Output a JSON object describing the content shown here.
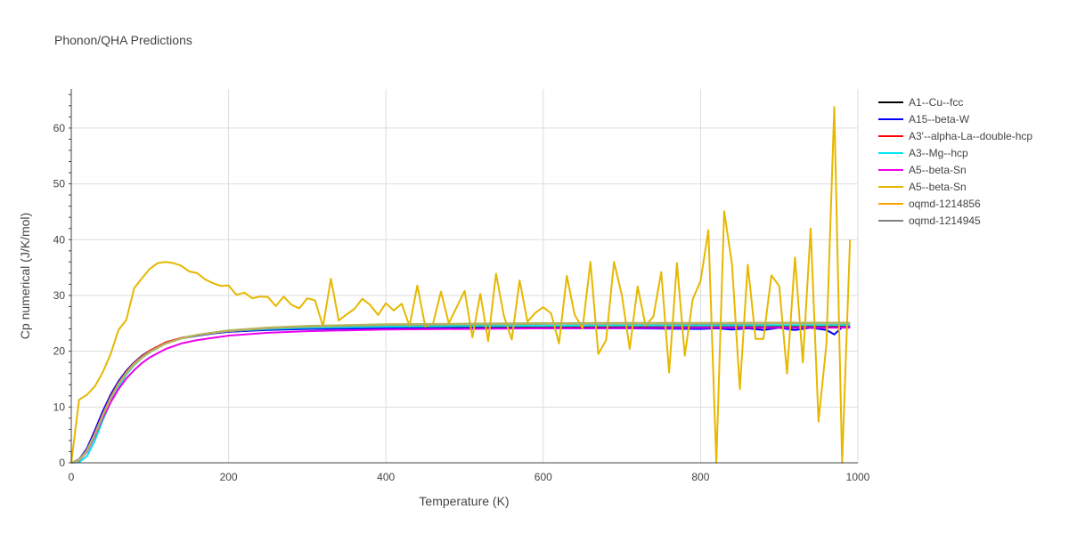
{
  "chart_data": {
    "type": "line",
    "title": "Phonon/QHA Predictions",
    "xlabel": "Temperature (K)",
    "ylabel": "Cp numerical (J/K/mol)",
    "xlim": [
      0,
      1000
    ],
    "ylim": [
      0,
      67
    ],
    "xticks": [
      0,
      200,
      400,
      600,
      800,
      1000
    ],
    "yticks": [
      0,
      10,
      20,
      30,
      40,
      50,
      60
    ],
    "grid": true,
    "legend_position": "right",
    "series": [
      {
        "name": "A1--Cu--fcc",
        "color": "#000000",
        "x": [
          0,
          10,
          20,
          30,
          40,
          50,
          60,
          70,
          80,
          90,
          100,
          120,
          140,
          160,
          180,
          200,
          250,
          300,
          400,
          500,
          600,
          700,
          800,
          900,
          990
        ],
        "y": [
          0,
          0.5,
          2.2,
          5.2,
          8.6,
          11.7,
          14.2,
          16.2,
          17.8,
          19,
          20,
          21.5,
          22.3,
          22.8,
          23.2,
          23.5,
          23.9,
          24.1,
          24.25,
          24.3,
          24.35,
          24.35,
          24.4,
          24.4,
          24.4
        ]
      },
      {
        "name": "A15--beta-W",
        "color": "#0000ff",
        "x": [
          0,
          10,
          20,
          30,
          40,
          50,
          60,
          70,
          80,
          90,
          100,
          120,
          140,
          160,
          180,
          200,
          250,
          300,
          400,
          500,
          600,
          700,
          800,
          820,
          840,
          860,
          880,
          900,
          920,
          940,
          960,
          970,
          980,
          990
        ],
        "y": [
          0,
          0.6,
          2.6,
          5.8,
          9.2,
          12.2,
          14.6,
          16.5,
          18,
          19.2,
          20.1,
          21.5,
          22.3,
          22.8,
          23.2,
          23.5,
          23.8,
          24,
          24.1,
          24.1,
          24.1,
          24.1,
          24.0,
          24.1,
          23.9,
          24.1,
          23.8,
          24.2,
          23.8,
          24.2,
          23.8,
          23.0,
          24.3,
          24.4
        ]
      },
      {
        "name": "A3'--alpha-La--double-hcp",
        "color": "#ff0000",
        "x": [
          0,
          10,
          20,
          30,
          40,
          50,
          60,
          70,
          80,
          90,
          100,
          120,
          140,
          160,
          180,
          200,
          250,
          300,
          400,
          500,
          600,
          700,
          800,
          900,
          990
        ],
        "y": [
          0,
          0.5,
          2.3,
          5.3,
          8.7,
          11.8,
          14.3,
          16.3,
          17.9,
          19.1,
          20.1,
          21.6,
          22.4,
          22.9,
          23.3,
          23.6,
          24,
          24.2,
          24.4,
          24.5,
          24.5,
          24.55,
          24.6,
          24.6,
          24.6
        ]
      },
      {
        "name": "A3--Mg--hcp",
        "color": "#00e5ee",
        "x": [
          0,
          10,
          20,
          30,
          40,
          50,
          60,
          70,
          80,
          90,
          100,
          120,
          140,
          160,
          180,
          200,
          250,
          300,
          400,
          500,
          600,
          700,
          800,
          900,
          990
        ],
        "y": [
          0,
          0.1,
          1.2,
          4.0,
          7.6,
          10.9,
          13.6,
          15.8,
          17.5,
          18.8,
          19.8,
          21.4,
          22.3,
          22.9,
          23.3,
          23.6,
          24,
          24.2,
          24.4,
          24.5,
          24.55,
          24.6,
          24.6,
          24.65,
          24.7
        ]
      },
      {
        "name": "A5--beta-Sn",
        "color": "#ee00ee",
        "x": [
          0,
          10,
          20,
          30,
          40,
          50,
          60,
          70,
          80,
          90,
          100,
          120,
          140,
          160,
          180,
          200,
          250,
          300,
          400,
          500,
          600,
          700,
          800,
          900,
          990
        ],
        "y": [
          0,
          0.4,
          2.0,
          4.8,
          8.0,
          10.8,
          13.2,
          15.1,
          16.6,
          17.9,
          18.9,
          20.4,
          21.4,
          22.0,
          22.4,
          22.8,
          23.3,
          23.6,
          23.9,
          24.0,
          24.1,
          24.15,
          24.2,
          24.2,
          24.2
        ]
      },
      {
        "name": "A5--beta-Sn",
        "color": "#e6b800",
        "x": [
          0,
          10,
          20,
          30,
          40,
          50,
          60,
          70,
          80,
          90,
          100,
          110,
          120,
          130,
          140,
          150,
          160,
          170,
          180,
          190,
          200,
          210,
          220,
          230,
          240,
          250,
          260,
          270,
          280,
          290,
          300,
          310,
          320,
          330,
          340,
          350,
          360,
          370,
          380,
          390,
          400,
          410,
          420,
          430,
          440,
          450,
          460,
          470,
          480,
          490,
          500,
          510,
          520,
          530,
          540,
          550,
          560,
          570,
          580,
          590,
          600,
          610,
          620,
          630,
          640,
          650,
          660,
          670,
          680,
          690,
          700,
          710,
          720,
          730,
          740,
          750,
          760,
          770,
          780,
          790,
          800,
          810,
          820,
          830,
          840,
          850,
          860,
          870,
          880,
          890,
          900,
          910,
          920,
          930,
          940,
          950,
          960,
          970,
          980,
          990
        ],
        "y": [
          0,
          11.3,
          12.2,
          13.7,
          16.2,
          19.5,
          23.8,
          25.6,
          31.3,
          33.1,
          34.8,
          35.8,
          36,
          35.8,
          35.3,
          34.3,
          34,
          32.9,
          32.2,
          31.7,
          31.8,
          30.1,
          30.5,
          29.5,
          29.8,
          29.7,
          28.1,
          29.8,
          28.3,
          27.7,
          29.5,
          29.1,
          24.4,
          33,
          25.5,
          26.6,
          27.6,
          29.4,
          28.3,
          26.5,
          28.6,
          27.3,
          28.5,
          24.5,
          31.8,
          24.4,
          25,
          30.7,
          25,
          27.9,
          30.8,
          22.5,
          30.3,
          21.8,
          33.9,
          26.3,
          22.1,
          32.7,
          25.3,
          26.9,
          27.9,
          26.8,
          21.4,
          33.5,
          26.5,
          24.1,
          36,
          19.5,
          22,
          36,
          30,
          20.4,
          31.6,
          24.6,
          26.2,
          34.2,
          16.2,
          35.8,
          19.2,
          29.3,
          32.6,
          41.7,
          0,
          45.1,
          35.6,
          13.2,
          35.5,
          22.2,
          22.2,
          33.6,
          31.7,
          16,
          36.8,
          18,
          42,
          7.4,
          21.3,
          63.8,
          0,
          40
        ]
      },
      {
        "name": "oqmd-1214856",
        "color": "#ffa500",
        "x": [
          0,
          10,
          20,
          30,
          40,
          50,
          60,
          70,
          80,
          90,
          100,
          120,
          140,
          160,
          180,
          200,
          250,
          300,
          400,
          500,
          600,
          700,
          800,
          900,
          990
        ],
        "y": [
          0,
          0.5,
          2.2,
          5.1,
          8.5,
          11.6,
          14.1,
          16.1,
          17.7,
          18.9,
          19.9,
          21.4,
          22.3,
          22.9,
          23.3,
          23.7,
          24.2,
          24.5,
          24.8,
          24.9,
          25,
          25,
          25,
          25.05,
          25.1
        ]
      },
      {
        "name": "oqmd-1214945",
        "color": "#808080",
        "x": [
          0,
          10,
          20,
          30,
          40,
          50,
          60,
          70,
          80,
          90,
          100,
          120,
          140,
          160,
          180,
          200,
          250,
          300,
          400,
          500,
          600,
          700,
          800,
          900,
          990
        ],
        "y": [
          0,
          0.5,
          2.2,
          5.1,
          8.5,
          11.6,
          14.1,
          16.1,
          17.7,
          18.9,
          19.9,
          21.4,
          22.3,
          22.9,
          23.3,
          23.6,
          24.1,
          24.4,
          24.7,
          24.8,
          24.9,
          24.95,
          24.95,
          25,
          25
        ]
      }
    ],
    "extra_series": [
      {
        "color": "#b5b560",
        "x": [
          0,
          10,
          20,
          30,
          40,
          50,
          60,
          70,
          80,
          90,
          100,
          120,
          140,
          160,
          180,
          200,
          250,
          300,
          400,
          500,
          600,
          700,
          800,
          900,
          990
        ],
        "y": [
          0,
          0.5,
          2.2,
          5.1,
          8.5,
          11.6,
          14.1,
          16.1,
          17.7,
          18.9,
          19.9,
          21.4,
          22.3,
          22.9,
          23.3,
          23.7,
          24.2,
          24.5,
          24.8,
          24.9,
          25,
          25.05,
          25.05,
          25.1,
          25.1
        ]
      }
    ]
  }
}
